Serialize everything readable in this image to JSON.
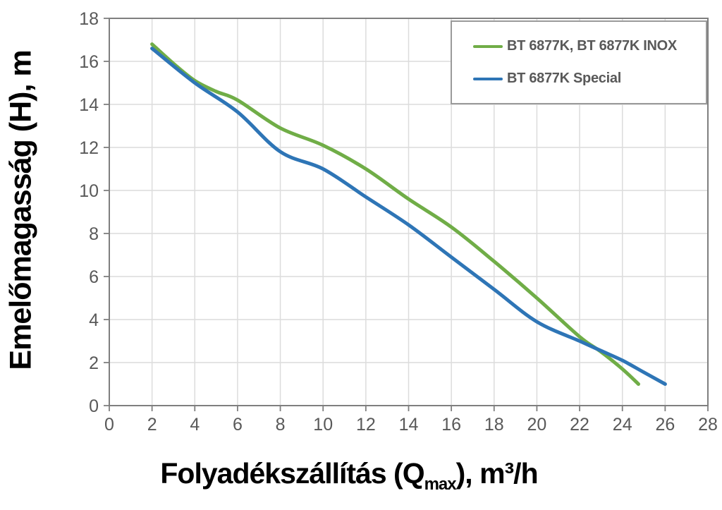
{
  "chart_data": {
    "type": "line",
    "title": "",
    "ylabel": "Emelőmagasság (H), m",
    "xlabel": {
      "prefix": "Folyadékszállítás (Q",
      "sub": "max",
      "suffix": "), m³/h"
    },
    "xlim": [
      0,
      28
    ],
    "ylim": [
      0,
      18
    ],
    "xticks": [
      0,
      2,
      4,
      6,
      8,
      10,
      12,
      14,
      16,
      18,
      20,
      22,
      24,
      26,
      28
    ],
    "yticks": [
      0,
      2,
      4,
      6,
      8,
      10,
      12,
      14,
      16,
      18
    ],
    "grid": true,
    "legend_position": "top-right",
    "colors": {
      "axis": "#7f7f7f",
      "grid": "#dcdcdc",
      "tick_labels": "#595959",
      "legend_text": "#595959",
      "background": "#ffffff"
    },
    "series": [
      {
        "name": "BT 6877K, BT 6877K INOX",
        "color": "#70ad47",
        "points": [
          [
            2,
            16.8
          ],
          [
            3,
            15.9
          ],
          [
            4,
            15.1
          ],
          [
            5,
            14.6
          ],
          [
            6,
            14.2
          ],
          [
            8,
            12.9
          ],
          [
            10,
            12.1
          ],
          [
            12,
            11.0
          ],
          [
            14,
            9.6
          ],
          [
            16,
            8.3
          ],
          [
            18,
            6.7
          ],
          [
            20,
            5.0
          ],
          [
            22,
            3.2
          ],
          [
            23,
            2.5
          ],
          [
            24,
            1.7
          ],
          [
            24.75,
            1.0
          ]
        ]
      },
      {
        "name": "BT 6877K Special",
        "color": "#2e75b6",
        "points": [
          [
            2,
            16.6
          ],
          [
            4,
            15.0
          ],
          [
            6,
            13.65
          ],
          [
            8,
            11.8
          ],
          [
            10,
            11.0
          ],
          [
            12,
            9.7
          ],
          [
            14,
            8.4
          ],
          [
            16,
            6.9
          ],
          [
            18,
            5.4
          ],
          [
            20,
            3.9
          ],
          [
            22,
            3.0
          ],
          [
            23,
            2.55
          ],
          [
            24,
            2.1
          ],
          [
            25,
            1.55
          ],
          [
            26,
            1.0
          ]
        ]
      }
    ]
  }
}
